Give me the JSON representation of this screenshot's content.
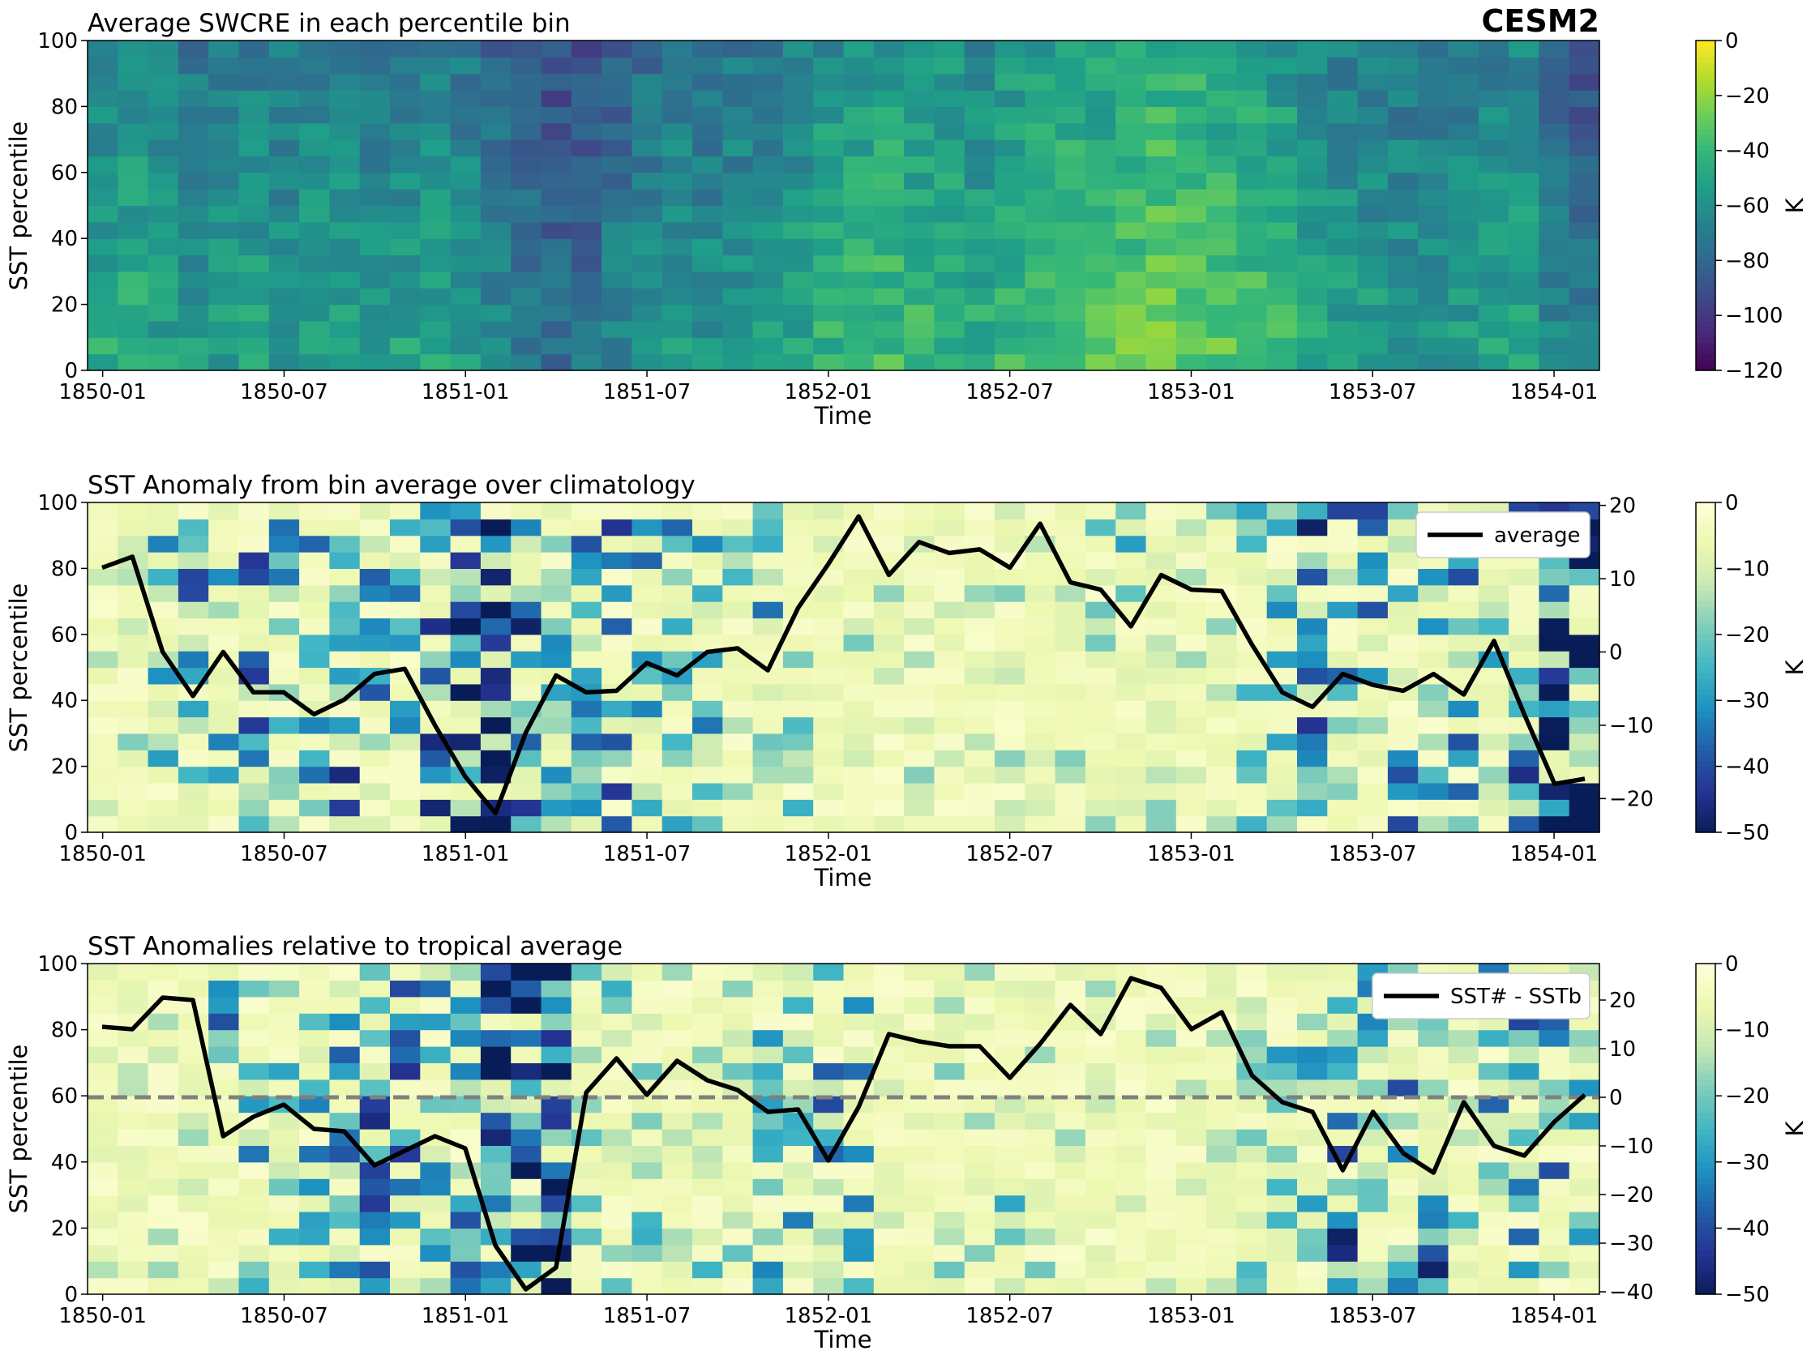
{
  "badge": "CESM2",
  "time_ticks": [
    "1850-01",
    "1850-07",
    "1851-01",
    "1851-07",
    "1852-01",
    "1852-07",
    "1853-01",
    "1853-07",
    "1854-01"
  ],
  "colors": {
    "line": "#000000",
    "zero_line": "#808080"
  },
  "chart_data": [
    {
      "type": "heatmap",
      "title": "Average SWCRE in each percentile bin",
      "xlabel": "Time",
      "ylabel": "SST percentile",
      "colorbar_label": "K",
      "colormap": "viridis",
      "clim": [
        -120,
        0
      ],
      "colorbar_ticks": [
        0,
        -20,
        -40,
        -60,
        -80,
        -100,
        -120
      ],
      "ylim": [
        0,
        100
      ],
      "yticks": [
        0,
        20,
        40,
        60,
        80,
        100
      ],
      "n_months": 50,
      "n_bins": 20,
      "column_profile": [
        -55,
        -52,
        -58,
        -62,
        -60,
        -58,
        -60,
        -56,
        -58,
        -60,
        -58,
        -56,
        -62,
        -70,
        -78,
        -82,
        -80,
        -72,
        -66,
        -62,
        -64,
        -62,
        -60,
        -56,
        -50,
        -46,
        -44,
        -46,
        -48,
        -52,
        -46,
        -44,
        -42,
        -40,
        -38,
        -34,
        -36,
        -40,
        -42,
        -46,
        -56,
        -58,
        -60,
        -62,
        -62,
        -60,
        -56,
        -54,
        -72,
        -78
      ],
      "bin_profile": [
        6,
        7,
        6,
        5,
        4,
        3,
        2,
        1,
        0,
        -1,
        -2,
        -3,
        -4,
        -5,
        -6,
        -7,
        -8,
        -9,
        -10,
        -11
      ]
    },
    {
      "type": "heatmap",
      "title": "SST Anomaly from bin average over climatology",
      "xlabel": "Time",
      "ylabel": "SST percentile",
      "colorbar_label": "K",
      "colormap": "YlGnBu",
      "clim": [
        -50,
        0
      ],
      "colorbar_ticks": [
        0,
        -10,
        -20,
        -30,
        -40,
        -50
      ],
      "ylim": [
        0,
        100
      ],
      "yticks": [
        0,
        20,
        40,
        60,
        80,
        100
      ],
      "y2lim": [
        -24.6,
        20.4
      ],
      "y2ticks": [
        20,
        10,
        0,
        -10,
        -20
      ],
      "legend": "average",
      "legend_position": "upper right",
      "series": [
        {
          "name": "average",
          "x": [
            "1850-01",
            "1850-02",
            "1850-03",
            "1850-04",
            "1850-05",
            "1850-06",
            "1850-07",
            "1850-08",
            "1850-09",
            "1850-10",
            "1850-11",
            "1850-12",
            "1851-01",
            "1851-02",
            "1851-03",
            "1851-04",
            "1851-05",
            "1851-06",
            "1851-07",
            "1851-08",
            "1851-09",
            "1851-10",
            "1851-11",
            "1851-12",
            "1852-01",
            "1852-02",
            "1852-03",
            "1852-04",
            "1852-05",
            "1852-06",
            "1852-07",
            "1852-08",
            "1852-09",
            "1852-10",
            "1852-11",
            "1852-12",
            "1853-01",
            "1853-02",
            "1853-03",
            "1853-04",
            "1853-05",
            "1853-06",
            "1853-07",
            "1853-08",
            "1853-09",
            "1853-10",
            "1853-11",
            "1853-12",
            "1854-01",
            "1854-02"
          ],
          "values": [
            11.5,
            13,
            0,
            -6,
            0,
            -5.5,
            -5.5,
            -8.5,
            -6.5,
            -3,
            -2.3,
            -10,
            -17,
            -22,
            -11,
            -3.2,
            -5.5,
            -5.3,
            -1.5,
            -3.2,
            0,
            0.5,
            -2.5,
            6,
            12,
            18.5,
            10.5,
            15,
            13.5,
            14,
            11.5,
            17.5,
            9.5,
            8.5,
            3.5,
            10.5,
            8.5,
            8.3,
            1,
            -5.5,
            -7.5,
            -3,
            -4.5,
            -5.3,
            -3,
            -5.8,
            1.5,
            -8.5,
            -18,
            -17.3
          ]
        }
      ]
    },
    {
      "type": "heatmap",
      "title": "SST Anomalies relative to tropical average",
      "xlabel": "Time",
      "ylabel": "SST percentile",
      "colorbar_label": "K",
      "colormap": "YlGnBu",
      "clim": [
        -50,
        0
      ],
      "colorbar_ticks": [
        0,
        -10,
        -20,
        -30,
        -40,
        -50
      ],
      "ylim": [
        0,
        100
      ],
      "yticks": [
        0,
        20,
        40,
        60,
        80,
        100
      ],
      "y2lim": [
        -40.5,
        27.5
      ],
      "y2ticks": [
        20,
        10,
        0,
        -10,
        -20,
        -30,
        -40
      ],
      "legend": "SST# - SSTb",
      "legend_position": "upper right",
      "reference_line": 0,
      "series": [
        {
          "name": "SST# - SSTb",
          "x": [
            "1850-01",
            "1850-02",
            "1850-03",
            "1850-04",
            "1850-05",
            "1850-06",
            "1850-07",
            "1850-08",
            "1850-09",
            "1850-10",
            "1850-11",
            "1850-12",
            "1851-01",
            "1851-02",
            "1851-03",
            "1851-04",
            "1851-05",
            "1851-06",
            "1851-07",
            "1851-08",
            "1851-09",
            "1851-10",
            "1851-11",
            "1851-12",
            "1852-01",
            "1852-02",
            "1852-03",
            "1852-04",
            "1852-05",
            "1852-06",
            "1852-07",
            "1852-08",
            "1852-09",
            "1852-10",
            "1852-11",
            "1852-12",
            "1853-01",
            "1853-02",
            "1853-03",
            "1853-04",
            "1853-05",
            "1853-06",
            "1853-07",
            "1853-08",
            "1853-09",
            "1853-10",
            "1853-11",
            "1853-12",
            "1854-01",
            "1854-02"
          ],
          "values": [
            14.5,
            14,
            20.5,
            20,
            -8,
            -4,
            -1.5,
            -6.5,
            -7,
            -14,
            -11,
            -8,
            -10.5,
            -30.5,
            -39.5,
            -35,
            1,
            8,
            0.5,
            7.5,
            3.5,
            1.5,
            -3,
            -2.5,
            -13,
            -2,
            13,
            11.5,
            10.5,
            10.5,
            4,
            11,
            19,
            13,
            24.5,
            22.5,
            14,
            17.5,
            4.5,
            -1,
            -3,
            -15,
            -3,
            -11.5,
            -15.5,
            -1,
            -10,
            -12,
            -5,
            0.5
          ]
        }
      ]
    }
  ]
}
